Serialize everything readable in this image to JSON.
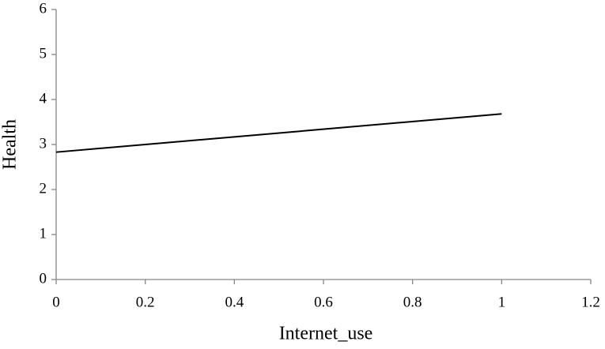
{
  "chart_data": {
    "type": "line",
    "x_label": "Internet_use",
    "y_label": "Health",
    "x": [
      0,
      1
    ],
    "series": [
      {
        "name": "Health",
        "color": "#000000",
        "values": [
          2.83,
          3.68
        ]
      }
    ],
    "xlim": [
      0,
      1.2
    ],
    "xticks": [
      0,
      0.2,
      0.4,
      0.6,
      0.8,
      1,
      1.2
    ],
    "ylim": [
      0,
      6
    ],
    "yticks": [
      0,
      1,
      2,
      3,
      4,
      5,
      6
    ],
    "grid": false
  }
}
